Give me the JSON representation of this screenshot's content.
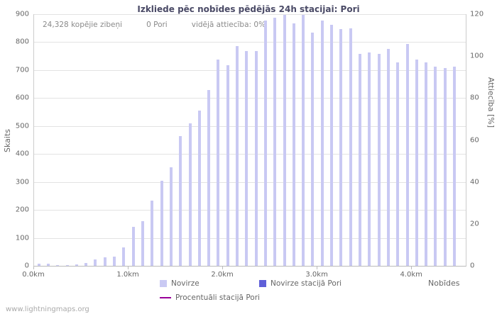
{
  "title": "Izkliede pēc nobīdes pēdējās 24h stacijai: Pori",
  "stats": {
    "total": "24,328 kopējie zibeņi",
    "station": "0 Pori",
    "ratio": "vidējā attiecība: 0%"
  },
  "watermark": "www.lightningmaps.org",
  "chart_data": {
    "type": "bar",
    "title": "Izkliede pēc nobīdes pēdējās 24h stacijai: Pori",
    "xlabel": "Nobīdes",
    "ylabel_left": "Skaits",
    "ylabel_right": "Attiecība [%]",
    "ylim_left": [
      0,
      900
    ],
    "ylim_right": [
      0,
      120
    ],
    "y_left_ticks": [
      0,
      100,
      200,
      300,
      400,
      500,
      600,
      700,
      800,
      900
    ],
    "y_right_ticks": [
      0,
      20,
      40,
      60,
      80,
      100,
      120
    ],
    "x_ticks": [
      {
        "value": 0.0,
        "label": "0.0km"
      },
      {
        "value": 1.0,
        "label": "1.0km"
      },
      {
        "value": 2.0,
        "label": "2.0km"
      },
      {
        "value": 3.0,
        "label": "3.0km"
      },
      {
        "value": 4.0,
        "label": "4.0km"
      }
    ],
    "xlim": [
      0,
      4.57
    ],
    "x_start": 0.05,
    "x_step": 0.1,
    "grid": "horizontal",
    "legend_position": "bottom",
    "series": [
      {
        "name": "Novirze",
        "type": "bar",
        "color": "#c9c9f3",
        "values": [
          8,
          8,
          3,
          3,
          5,
          10,
          22,
          30,
          32,
          65,
          140,
          160,
          232,
          305,
          352,
          465,
          510,
          555,
          630,
          738,
          718,
          785,
          768,
          768,
          878,
          888,
          898,
          868,
          897,
          833,
          878,
          862,
          848,
          850,
          758,
          762,
          757,
          775,
          728,
          793,
          738,
          728,
          713,
          708,
          713
        ]
      },
      {
        "name": "Novirze stacijā Pori",
        "type": "bar",
        "color": "#5f5fd8",
        "values": [
          0,
          0,
          0,
          0,
          0,
          0,
          0,
          0,
          0,
          0,
          0,
          0,
          0,
          0,
          0,
          0,
          0,
          0,
          0,
          0,
          0,
          0,
          0,
          0,
          0,
          0,
          0,
          0,
          0,
          0,
          0,
          0,
          0,
          0,
          0,
          0,
          0,
          0,
          0,
          0,
          0,
          0,
          0,
          0,
          0
        ]
      },
      {
        "name": "Procentuāli stacijā Pori",
        "type": "line",
        "axis": "right",
        "color": "#990099",
        "values": [
          0,
          0,
          0,
          0,
          0,
          0,
          0,
          0,
          0,
          0,
          0,
          0,
          0,
          0,
          0,
          0,
          0,
          0,
          0,
          0,
          0,
          0,
          0,
          0,
          0,
          0,
          0,
          0,
          0,
          0,
          0,
          0,
          0,
          0,
          0,
          0,
          0,
          0,
          0,
          0,
          0,
          0,
          0,
          0,
          0
        ]
      }
    ],
    "legend": [
      {
        "label": "Novirze",
        "color": "#c9c9f3",
        "swatch": "square"
      },
      {
        "label": "Novirze stacijā Pori",
        "color": "#5f5fd8",
        "swatch": "square"
      },
      {
        "label": "Procentuāli stacijā Pori",
        "color": "#990099",
        "swatch": "line"
      }
    ]
  }
}
